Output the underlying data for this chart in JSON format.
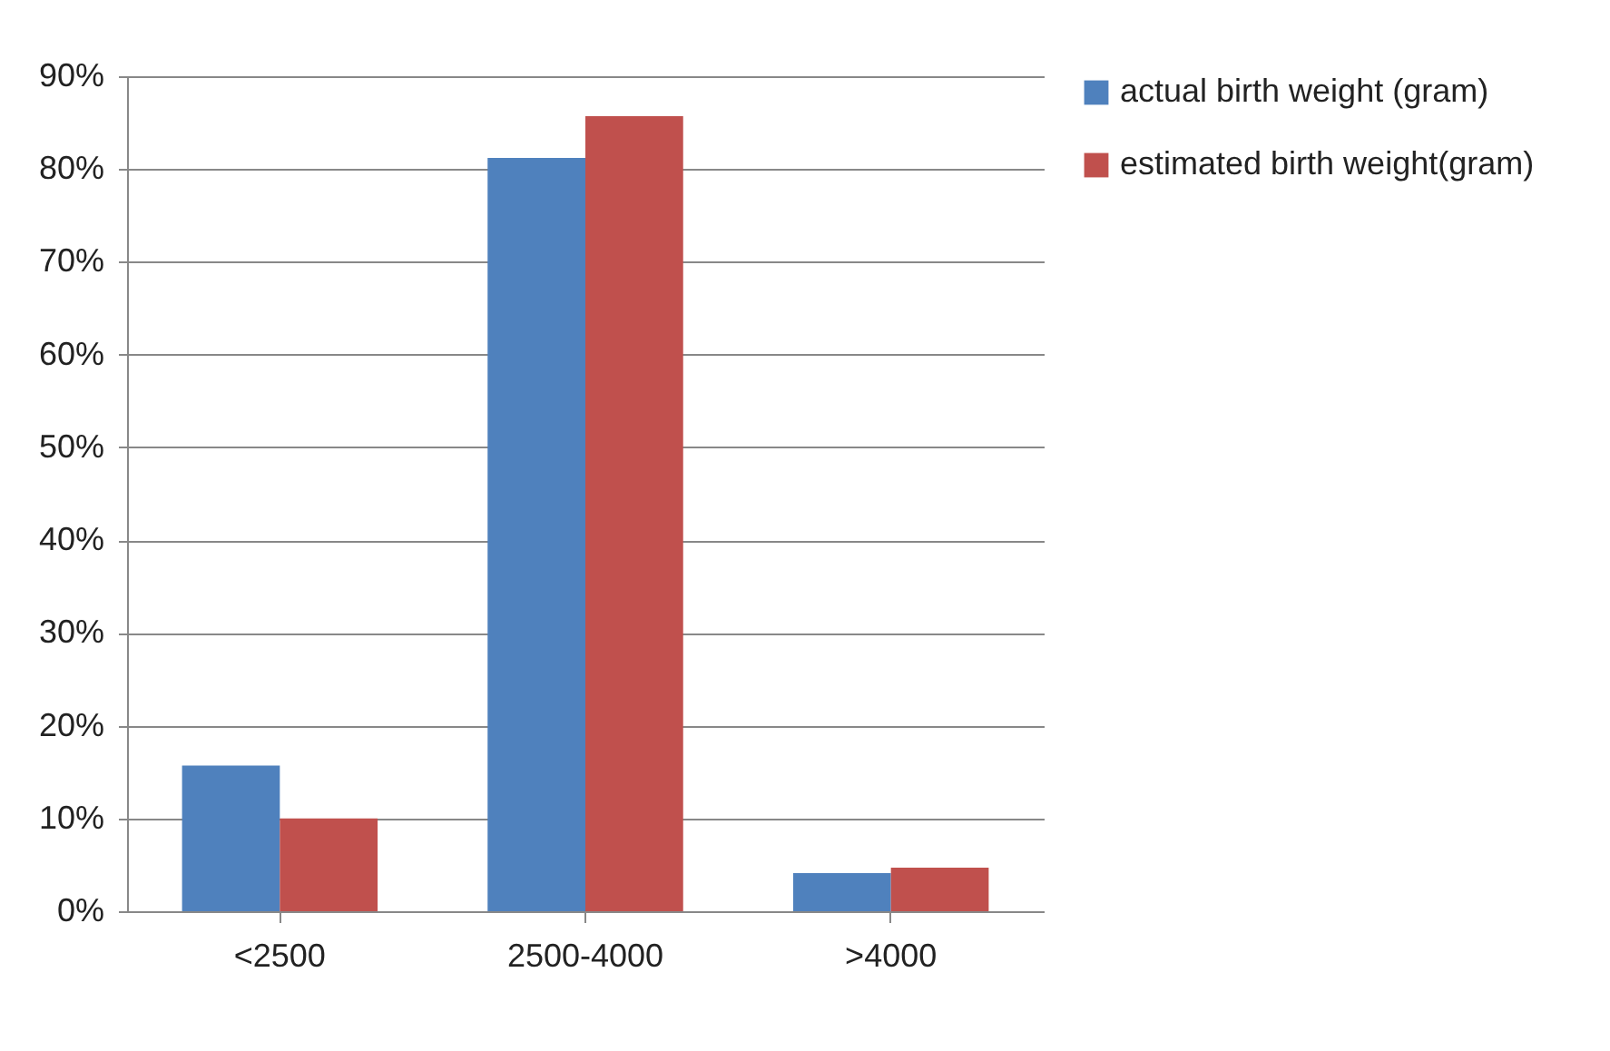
{
  "chart_data": {
    "type": "bar",
    "categories": [
      "<2500",
      "2500-4000",
      ">4000"
    ],
    "series": [
      {
        "name": "actual birth weight (gram)",
        "color": "#4f81bd",
        "values": [
          15.7,
          81.2,
          4.1
        ]
      },
      {
        "name": "estimated birth weight(gram)",
        "color": "#c0504d",
        "values": [
          10.0,
          85.7,
          4.7
        ]
      }
    ],
    "ylim": [
      0,
      90
    ],
    "yticks": [
      {
        "value": 0,
        "label": "0%"
      },
      {
        "value": 10,
        "label": "10%"
      },
      {
        "value": 20,
        "label": "20%"
      },
      {
        "value": 30,
        "label": "30%"
      },
      {
        "value": 40,
        "label": "40%"
      },
      {
        "value": 50,
        "label": "50%"
      },
      {
        "value": 60,
        "label": "60%"
      },
      {
        "value": 70,
        "label": "70%"
      },
      {
        "value": 80,
        "label": "80%"
      },
      {
        "value": 90,
        "label": "90%"
      }
    ],
    "grid": "y",
    "legend": "right"
  }
}
